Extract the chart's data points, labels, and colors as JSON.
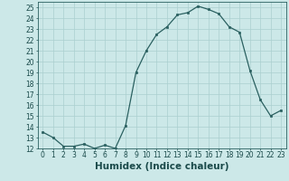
{
  "title": "",
  "xlabel": "Humidex (Indice chaleur)",
  "ylabel": "",
  "x": [
    0,
    1,
    2,
    3,
    4,
    5,
    6,
    7,
    8,
    9,
    10,
    11,
    12,
    13,
    14,
    15,
    16,
    17,
    18,
    19,
    20,
    21,
    22,
    23
  ],
  "y": [
    13.5,
    13.0,
    12.2,
    12.2,
    12.4,
    12.0,
    12.3,
    12.0,
    14.1,
    19.0,
    21.0,
    22.5,
    23.2,
    24.3,
    24.5,
    25.1,
    24.8,
    24.4,
    23.2,
    22.7,
    19.2,
    16.5,
    15.0,
    15.5
  ],
  "ylim": [
    12,
    25.5
  ],
  "yticks": [
    12,
    13,
    14,
    15,
    16,
    17,
    18,
    19,
    20,
    21,
    22,
    23,
    24,
    25
  ],
  "bg_color": "#cce8e8",
  "grid_color": "#aacfcf",
  "line_color": "#2a6060",
  "marker_color": "#2a6060",
  "tick_label_fontsize": 5.5,
  "axis_label_fontsize": 7.5
}
